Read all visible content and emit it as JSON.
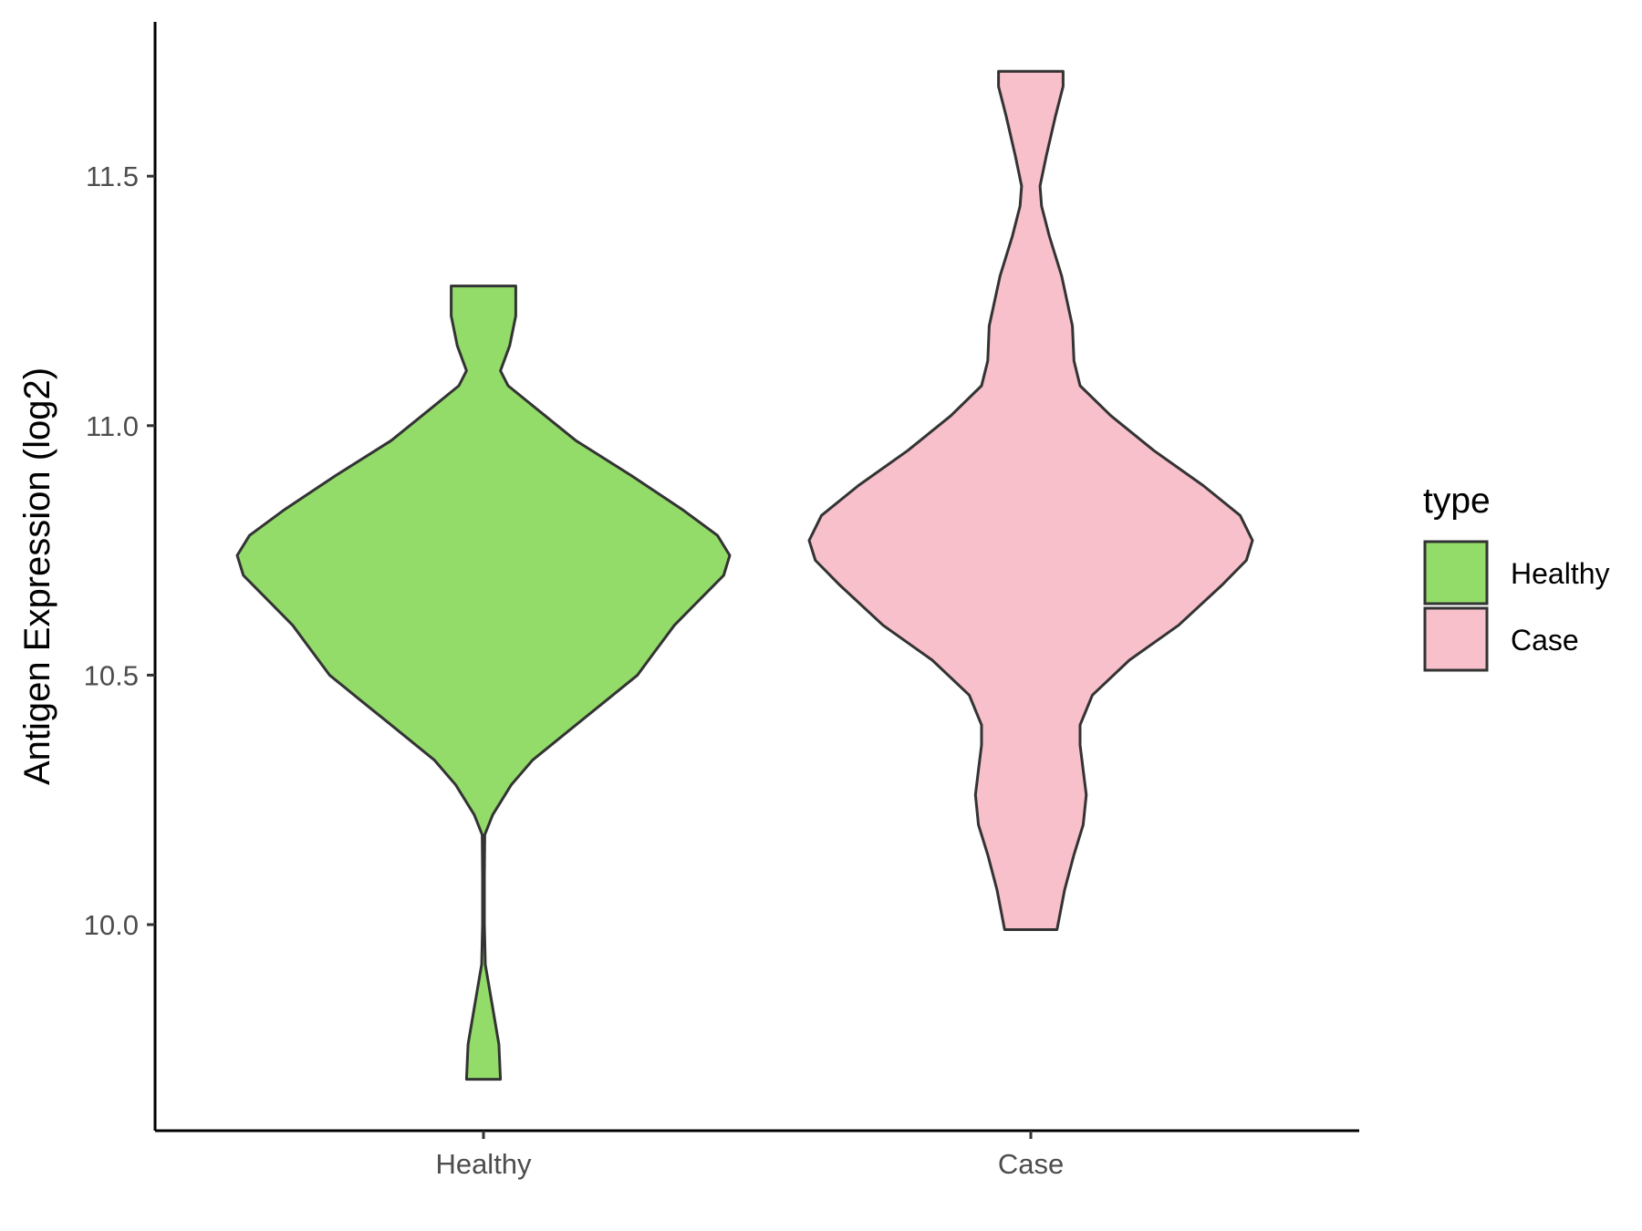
{
  "chart_data": {
    "type": "violin",
    "title": "",
    "xlabel": "",
    "ylabel": "Antigen Expression (log2)",
    "ylim": [
      9.65,
      11.85
    ],
    "y_ticks": [
      10.0,
      10.5,
      11.0,
      11.5
    ],
    "y_tick_labels": [
      "10.0",
      "10.5",
      "11.0",
      "11.5"
    ],
    "categories": [
      "Healthy",
      "Case"
    ],
    "grid": false,
    "legend": {
      "title": "type",
      "position": "right",
      "entries": [
        {
          "label": "Healthy",
          "color": "#93dc6a"
        },
        {
          "label": "Case",
          "color": "#f7c0cb"
        }
      ]
    },
    "series": [
      {
        "name": "Healthy",
        "color": "#93dc6a",
        "min": 9.69,
        "max": 11.28,
        "density": [
          [
            9.69,
            0.055
          ],
          [
            9.76,
            0.05
          ],
          [
            9.84,
            0.028
          ],
          [
            9.92,
            0.006
          ],
          [
            10.0,
            0.003
          ],
          [
            10.1,
            0.003
          ],
          [
            10.18,
            0.004
          ],
          [
            10.22,
            0.03
          ],
          [
            10.28,
            0.09
          ],
          [
            10.33,
            0.16
          ],
          [
            10.4,
            0.3
          ],
          [
            10.45,
            0.4
          ],
          [
            10.5,
            0.5
          ],
          [
            10.55,
            0.56
          ],
          [
            10.6,
            0.62
          ],
          [
            10.65,
            0.7
          ],
          [
            10.7,
            0.78
          ],
          [
            10.74,
            0.8
          ],
          [
            10.78,
            0.76
          ],
          [
            10.83,
            0.65
          ],
          [
            10.9,
            0.48
          ],
          [
            10.97,
            0.3
          ],
          [
            11.03,
            0.18
          ],
          [
            11.08,
            0.08
          ],
          [
            11.11,
            0.055
          ],
          [
            11.16,
            0.085
          ],
          [
            11.22,
            0.105
          ],
          [
            11.26,
            0.105
          ],
          [
            11.28,
            0.105
          ]
        ]
      },
      {
        "name": "Case",
        "color": "#f7c0cb",
        "min": 9.99,
        "max": 11.71,
        "density": [
          [
            9.99,
            0.085
          ],
          [
            10.07,
            0.11
          ],
          [
            10.14,
            0.14
          ],
          [
            10.2,
            0.17
          ],
          [
            10.26,
            0.18
          ],
          [
            10.31,
            0.17
          ],
          [
            10.36,
            0.16
          ],
          [
            10.4,
            0.16
          ],
          [
            10.46,
            0.2
          ],
          [
            10.53,
            0.32
          ],
          [
            10.6,
            0.48
          ],
          [
            10.68,
            0.62
          ],
          [
            10.73,
            0.7
          ],
          [
            10.77,
            0.72
          ],
          [
            10.82,
            0.68
          ],
          [
            10.88,
            0.56
          ],
          [
            10.95,
            0.4
          ],
          [
            11.02,
            0.26
          ],
          [
            11.08,
            0.16
          ],
          [
            11.13,
            0.14
          ],
          [
            11.2,
            0.135
          ],
          [
            11.3,
            0.1
          ],
          [
            11.38,
            0.06
          ],
          [
            11.44,
            0.035
          ],
          [
            11.48,
            0.03
          ],
          [
            11.54,
            0.05
          ],
          [
            11.62,
            0.08
          ],
          [
            11.68,
            0.105
          ],
          [
            11.71,
            0.105
          ]
        ]
      }
    ]
  }
}
